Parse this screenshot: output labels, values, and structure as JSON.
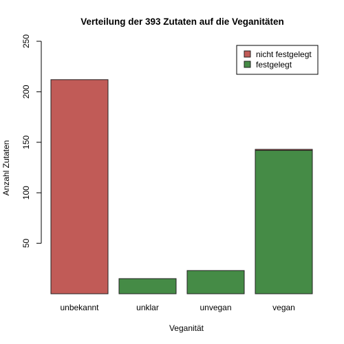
{
  "chart_data": {
    "type": "bar",
    "stacked": true,
    "title": "Verteilung der 393 Zutaten auf die Veganitäten",
    "xlabel": "Veganität",
    "ylabel": "Anzahl Zutaten",
    "categories": [
      "unbekannt",
      "unklar",
      "unvegan",
      "vegan"
    ],
    "series": [
      {
        "name": "festgelegt",
        "color": "#458b46",
        "values": [
          0,
          15,
          23,
          142
        ]
      },
      {
        "name": "nicht festgelegt",
        "color": "#c15b57",
        "values": [
          212,
          0,
          0,
          1
        ]
      }
    ],
    "legend_order": [
      1,
      0
    ],
    "legend_position": "top-right",
    "ylim": [
      0,
      250
    ],
    "yticks": [
      50,
      100,
      150,
      200,
      250
    ],
    "grid": false
  }
}
